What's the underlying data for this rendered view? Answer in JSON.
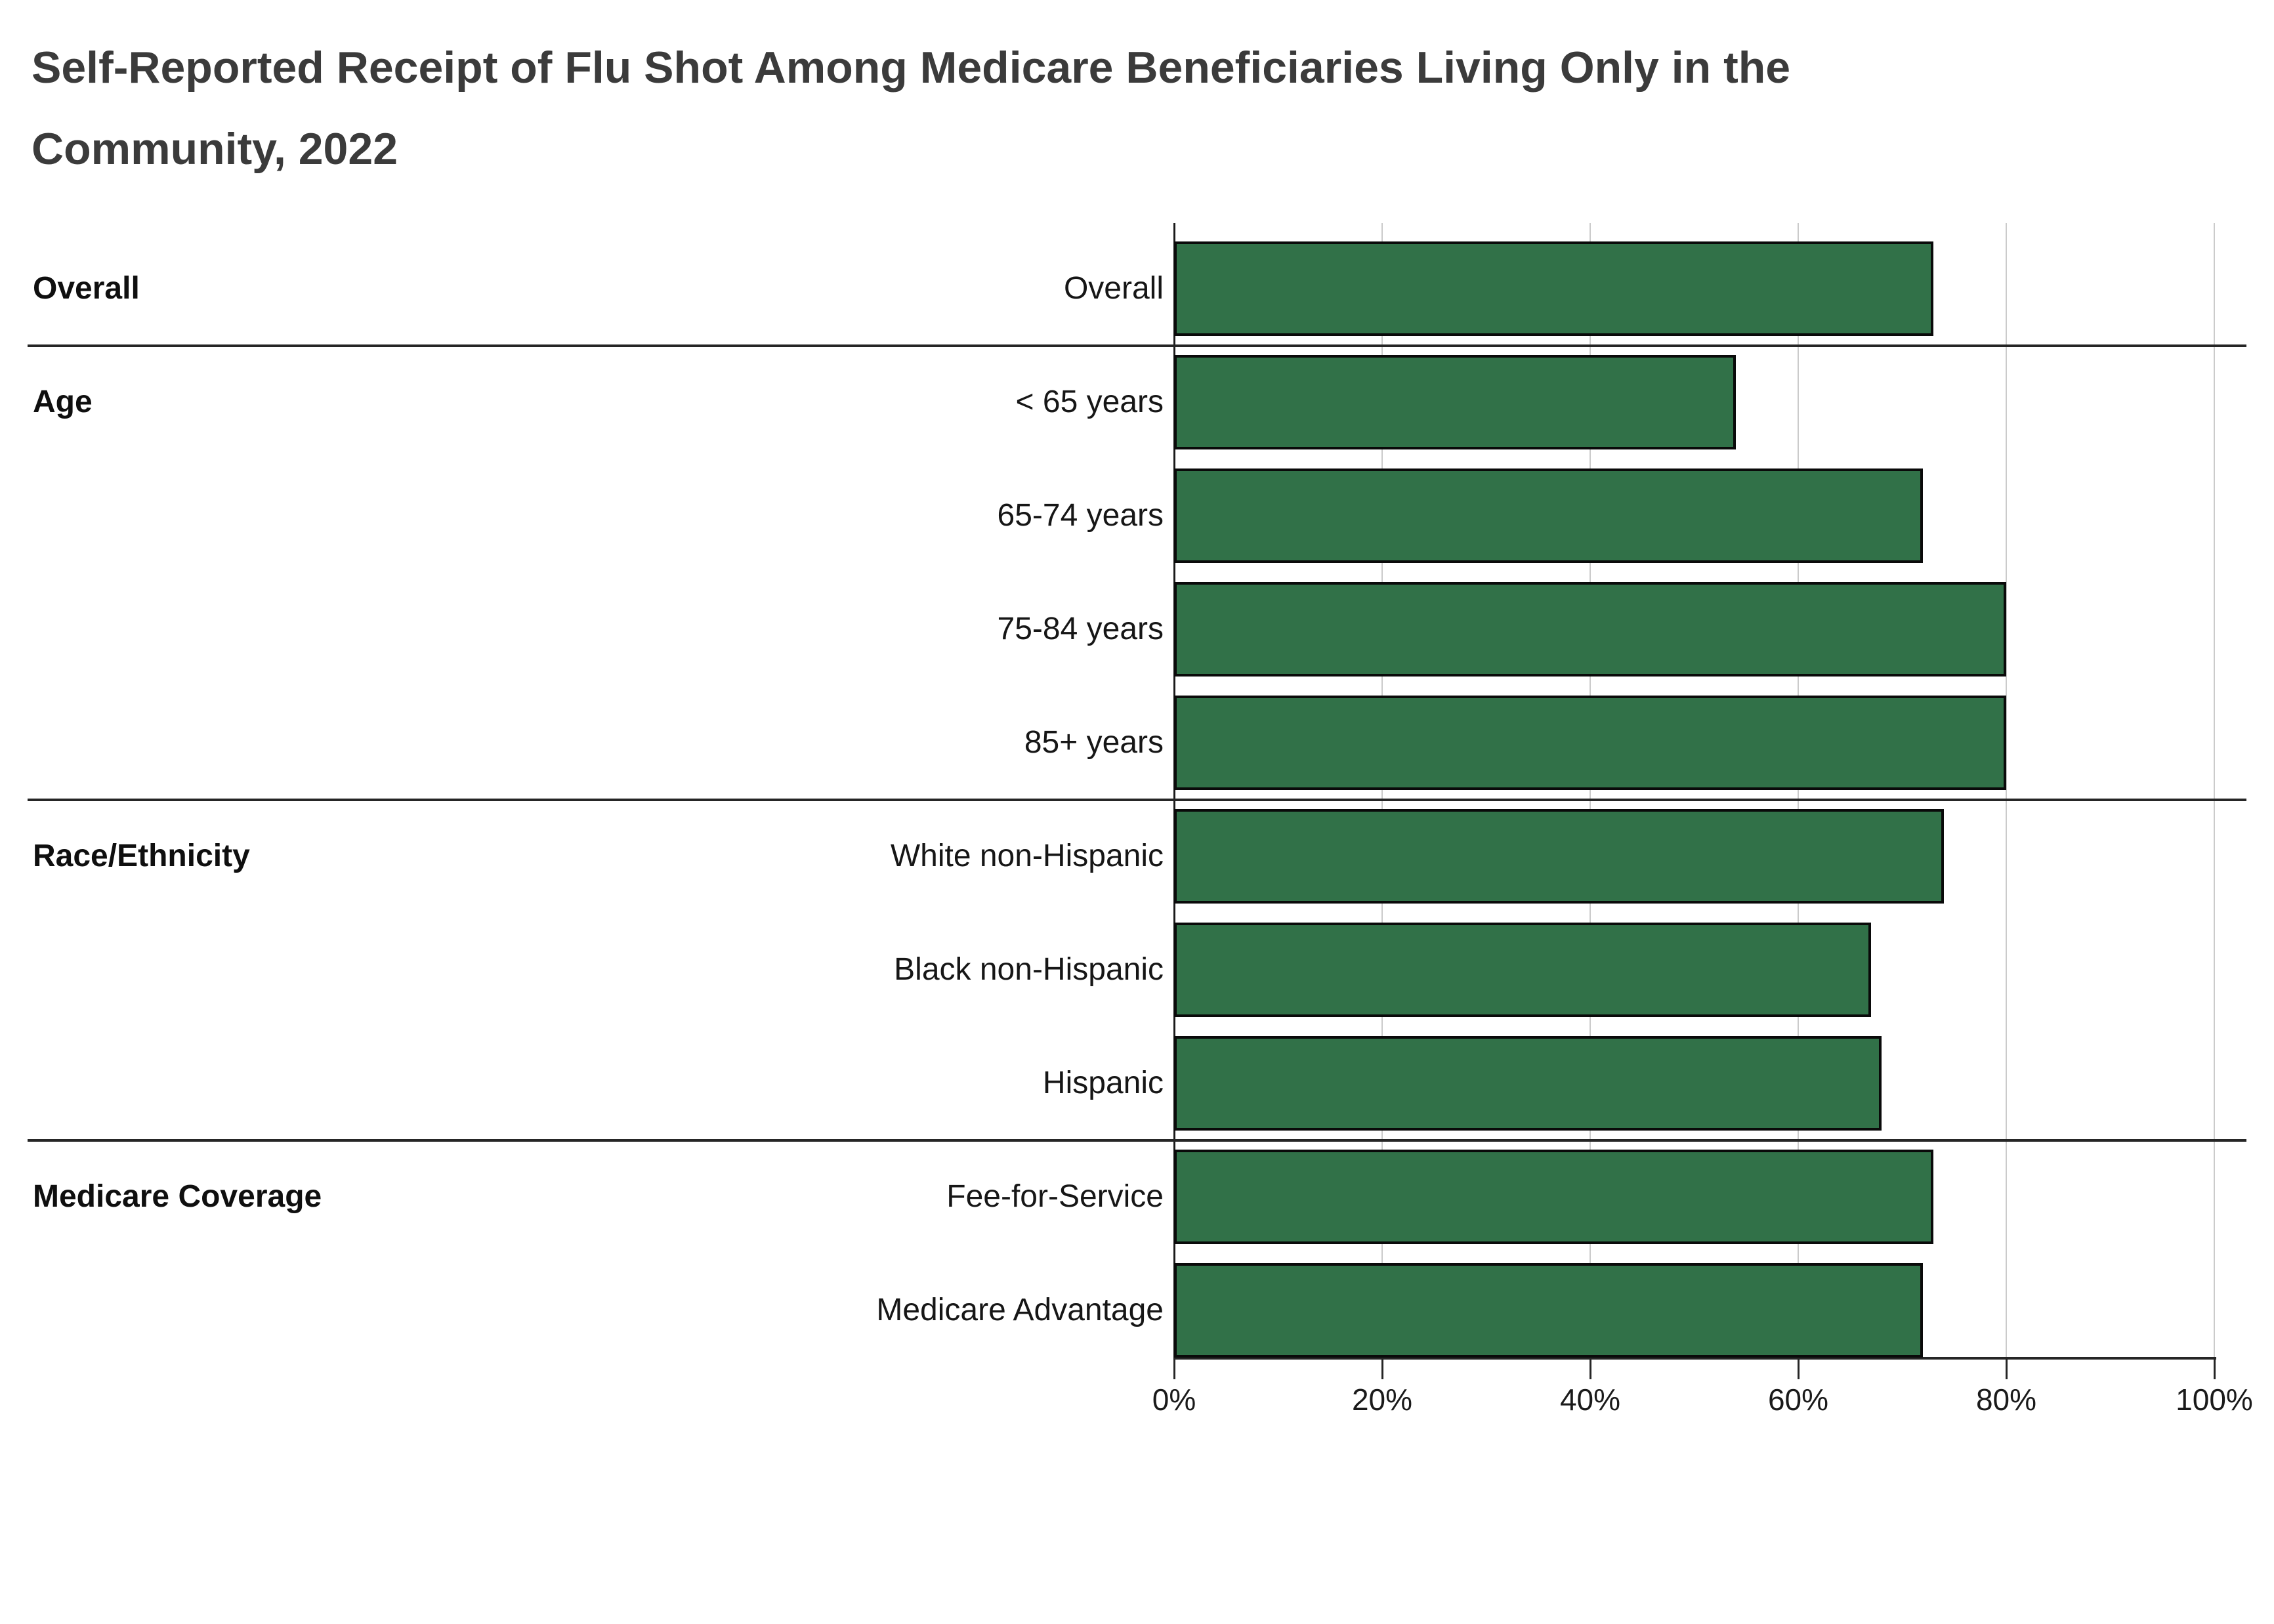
{
  "title": "Self-Reported Receipt of Flu Shot Among Medicare Beneficiaries Living Only in the Community, 2022",
  "chart_data": {
    "type": "bar",
    "orientation": "horizontal",
    "title": "Self-Reported Receipt of Flu Shot Among Medicare Beneficiaries Living Only in the Community, 2022",
    "xlabel": "",
    "ylabel": "",
    "unit": "percent",
    "xlim": [
      0,
      100
    ],
    "x_tick_values": [
      0,
      20,
      40,
      60,
      80,
      100
    ],
    "x_tick_labels": [
      "0%",
      "20%",
      "40%",
      "60%",
      "80%",
      "100%"
    ],
    "grid": true,
    "legend": "none",
    "bar_color": "#317148",
    "bar_border_color": "#0a0a0a",
    "gridline_color": "#cbcbcb",
    "divider_color": "#262626",
    "sections": [
      {
        "group": "Overall",
        "rows": [
          {
            "label": "Overall",
            "value": 73
          }
        ]
      },
      {
        "group": "Age",
        "rows": [
          {
            "label": "< 65 years",
            "value": 54
          },
          {
            "label": "65-74 years",
            "value": 72
          },
          {
            "label": "75-84 years",
            "value": 80
          },
          {
            "label": "85+ years",
            "value": 80
          }
        ]
      },
      {
        "group": "Race/Ethnicity",
        "rows": [
          {
            "label": "White non-Hispanic",
            "value": 74
          },
          {
            "label": "Black non-Hispanic",
            "value": 67
          },
          {
            "label": "Hispanic",
            "value": 68
          }
        ]
      },
      {
        "group": "Medicare Coverage",
        "rows": [
          {
            "label": "Fee-for-Service",
            "value": 73
          },
          {
            "label": "Medicare Advantage",
            "value": 72
          }
        ]
      }
    ]
  }
}
